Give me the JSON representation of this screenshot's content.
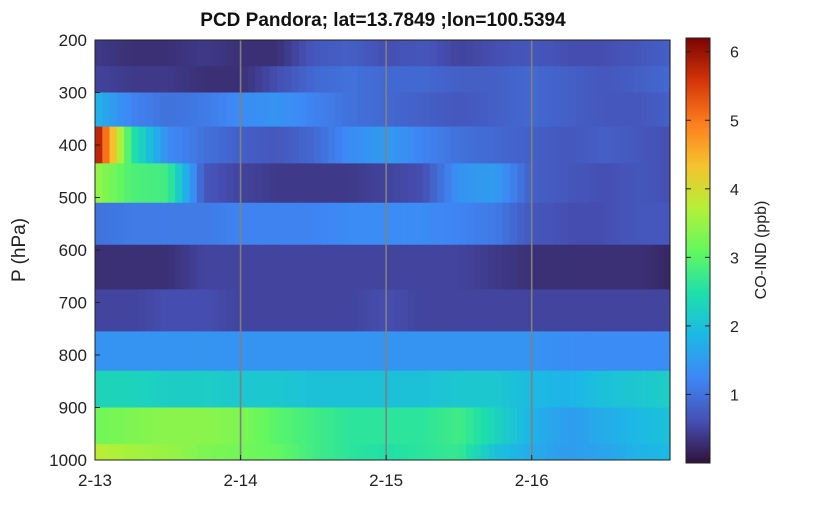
{
  "chart_data": {
    "type": "heatmap",
    "title": "PCD Pandora; lat=13.7849 ;lon=100.5394",
    "xlabel": "",
    "ylabel": "P (hPa)",
    "x_ticks": [
      "2-13",
      "2-14",
      "2-15",
      "2-16"
    ],
    "x_range_days": [
      0,
      3.95
    ],
    "y_ticks": [
      200,
      300,
      400,
      500,
      600,
      700,
      800,
      900,
      1000
    ],
    "ylim": [
      200,
      1000
    ],
    "y_reversed": true,
    "vertical_gridlines_at": [
      "2-14",
      "2-15",
      "2-16"
    ],
    "colorbar": {
      "label": "CO-IND (ppb)",
      "ticks": [
        1,
        2,
        3,
        4,
        5,
        6
      ],
      "range": [
        0,
        6.2
      ],
      "colormap": "turbo"
    },
    "pressure_layers": [
      {
        "top": 200,
        "bottom": 250
      },
      {
        "top": 250,
        "bottom": 300
      },
      {
        "top": 300,
        "bottom": 365
      },
      {
        "top": 365,
        "bottom": 435
      },
      {
        "top": 435,
        "bottom": 510
      },
      {
        "top": 510,
        "bottom": 590
      },
      {
        "top": 590,
        "bottom": 675
      },
      {
        "top": 675,
        "bottom": 755
      },
      {
        "top": 755,
        "bottom": 830
      },
      {
        "top": 830,
        "bottom": 900
      },
      {
        "top": 900,
        "bottom": 970
      },
      {
        "top": 970,
        "bottom": 1005
      }
    ],
    "time_days": [
      0,
      0.25,
      0.5,
      0.75,
      1.0,
      1.25,
      1.5,
      1.75,
      2.0,
      2.25,
      2.5,
      2.75,
      3.0,
      3.25,
      3.5,
      3.75,
      3.95
    ],
    "values": [
      [
        0.4,
        0.3,
        0.3,
        0.4,
        0.3,
        0.3,
        0.7,
        0.8,
        0.6,
        0.7,
        0.5,
        0.6,
        0.7,
        0.6,
        0.6,
        0.7,
        0.8
      ],
      [
        0.5,
        0.4,
        0.4,
        0.3,
        0.3,
        0.6,
        0.9,
        1.0,
        0.9,
        0.9,
        0.8,
        0.8,
        0.9,
        0.8,
        0.7,
        0.8,
        0.9
      ],
      [
        1.8,
        1.2,
        1.0,
        1.1,
        1.3,
        1.4,
        1.2,
        1.0,
        0.9,
        0.8,
        0.7,
        0.8,
        0.9,
        0.8,
        0.7,
        0.7,
        0.8
      ],
      [
        6.1,
        2.6,
        1.3,
        1.0,
        0.8,
        0.7,
        0.9,
        1.3,
        1.5,
        1.2,
        1.0,
        0.9,
        0.8,
        0.7,
        0.8,
        0.7,
        0.6
      ],
      [
        3.5,
        2.9,
        2.8,
        0.7,
        0.5,
        0.4,
        0.4,
        0.4,
        0.5,
        0.6,
        1.4,
        1.5,
        0.8,
        0.7,
        0.6,
        0.7,
        0.6
      ],
      [
        1.0,
        1.1,
        1.1,
        1.1,
        1.2,
        1.2,
        1.2,
        1.3,
        1.3,
        1.3,
        1.2,
        1.1,
        0.7,
        0.6,
        0.6,
        0.7,
        0.7
      ],
      [
        0.3,
        0.3,
        0.3,
        0.5,
        0.5,
        0.5,
        0.5,
        0.5,
        0.5,
        0.5,
        0.5,
        0.4,
        0.3,
        0.3,
        0.3,
        0.3,
        0.2
      ],
      [
        0.5,
        0.5,
        0.6,
        0.6,
        0.5,
        0.5,
        0.5,
        0.5,
        0.6,
        0.5,
        0.5,
        0.5,
        0.5,
        0.5,
        0.5,
        0.5,
        0.5
      ],
      [
        1.4,
        1.4,
        1.4,
        1.4,
        1.4,
        1.4,
        1.4,
        1.4,
        1.4,
        1.4,
        1.4,
        1.4,
        1.4,
        1.3,
        1.3,
        1.3,
        1.3
      ],
      [
        2.3,
        2.3,
        2.2,
        2.2,
        2.1,
        2.1,
        2.0,
        2.0,
        2.0,
        2.0,
        2.1,
        2.1,
        1.9,
        1.8,
        2.0,
        2.1,
        2.2
      ],
      [
        3.2,
        3.3,
        3.4,
        3.4,
        3.3,
        3.0,
        2.8,
        2.6,
        2.6,
        2.6,
        2.8,
        2.3,
        1.8,
        1.5,
        1.7,
        1.9,
        2.0
      ],
      [
        3.8,
        3.6,
        3.5,
        3.3,
        3.2,
        3.1,
        2.8,
        2.6,
        2.5,
        2.6,
        2.7,
        2.0,
        1.7,
        1.5,
        1.6,
        1.8,
        1.9
      ]
    ]
  }
}
